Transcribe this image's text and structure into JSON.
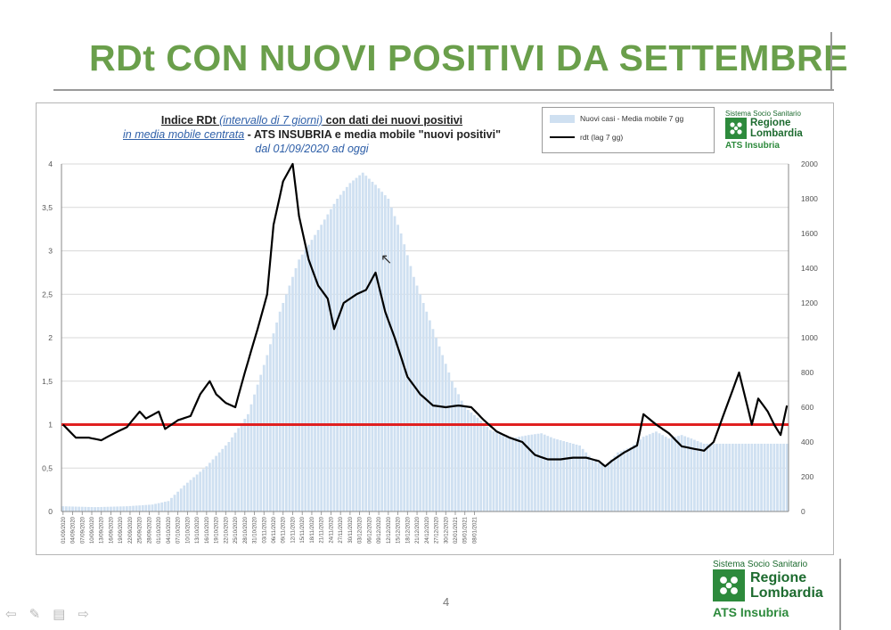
{
  "slide": {
    "title": "RDt CON NUOVI POSITIVI DA SETTEMBRE",
    "page_number": "4"
  },
  "logo": {
    "system": "Sistema Socio Sanitario",
    "region_line1": "Regione",
    "region_line2": "Lombardia",
    "ats": "ATS Insubria"
  },
  "colors": {
    "title_green": "#6a9f4b",
    "bars": "#cfe0f1",
    "line": "#000000",
    "threshold": "#e02020",
    "brand_green": "#2d8a3c"
  },
  "chart_data": {
    "type": "bar+line",
    "title_parts": {
      "p1": "Indice RDt ",
      "p2": "(intervallo di 7 giorni)",
      "p3": " con dati dei nuovi positivi",
      "p4": "in media mobile centrata",
      "p5": " - ATS INSUBRIA e media mobile \"nuovi positivi\"",
      "p6": "dal 01/09/2020 ad oggi"
    },
    "legend": {
      "bars": "Nuovi casi - Media mobile 7 gg",
      "line": "rdt (lag 7 gg)"
    },
    "y_left": {
      "min": 0,
      "max": 4,
      "ticks": [
        "0",
        "0,5",
        "1",
        "1,5",
        "2",
        "2,5",
        "3",
        "3,5",
        "4"
      ]
    },
    "y_right": {
      "min": 0,
      "max": 2000,
      "ticks": [
        "0",
        "200",
        "400",
        "600",
        "800",
        "1000",
        "1200",
        "1400",
        "1600",
        "1800",
        "2000"
      ]
    },
    "threshold": 1,
    "x_labels": [
      "01/09/2020",
      "04/09/2020",
      "07/09/2020",
      "10/09/2020",
      "13/09/2020",
      "16/09/2020",
      "19/09/2020",
      "22/09/2020",
      "25/09/2020",
      "28/09/2020",
      "01/10/2020",
      "04/10/2020",
      "07/10/2020",
      "10/10/2020",
      "13/10/2020",
      "16/10/2020",
      "19/10/2020",
      "22/10/2020",
      "25/10/2020",
      "28/10/2020",
      "31/10/2020",
      "03/11/2020",
      "06/11/2020",
      "09/11/2020",
      "12/11/2020",
      "15/11/2020",
      "18/11/2020",
      "21/11/2020",
      "24/11/2020",
      "27/11/2020",
      "30/11/2020",
      "03/12/2020",
      "06/12/2020",
      "09/12/2020",
      "12/12/2020",
      "15/12/2020",
      "18/12/2020",
      "21/12/2020",
      "24/12/2020",
      "27/12/2020",
      "30/12/2020",
      "02/01/2021",
      "05/01/2021",
      "08/01/2021"
    ],
    "bar_keypoints": [
      [
        0,
        30
      ],
      [
        10,
        25
      ],
      [
        20,
        30
      ],
      [
        28,
        40
      ],
      [
        33,
        60
      ],
      [
        38,
        150
      ],
      [
        45,
        260
      ],
      [
        52,
        400
      ],
      [
        58,
        560
      ],
      [
        64,
        900
      ],
      [
        68,
        1150
      ],
      [
        74,
        1450
      ],
      [
        80,
        1620
      ],
      [
        86,
        1800
      ],
      [
        90,
        1890
      ],
      [
        94,
        1950
      ],
      [
        98,
        1880
      ],
      [
        102,
        1800
      ],
      [
        106,
        1600
      ],
      [
        110,
        1350
      ],
      [
        114,
        1150
      ],
      [
        118,
        950
      ],
      [
        122,
        750
      ],
      [
        126,
        600
      ],
      [
        130,
        540
      ],
      [
        134,
        470
      ],
      [
        140,
        420
      ],
      [
        146,
        440
      ],
      [
        150,
        450
      ],
      [
        154,
        420
      ],
      [
        158,
        400
      ],
      [
        162,
        380
      ],
      [
        166,
        300
      ],
      [
        170,
        260
      ],
      [
        174,
        340
      ],
      [
        178,
        370
      ],
      [
        182,
        430
      ],
      [
        186,
        460
      ],
      [
        190,
        420
      ],
      [
        194,
        440
      ],
      [
        197,
        420
      ],
      [
        201,
        390
      ]
    ],
    "rdt_keypoints": [
      [
        0,
        1.0
      ],
      [
        4,
        0.85
      ],
      [
        8,
        0.85
      ],
      [
        12,
        0.82
      ],
      [
        16,
        0.9
      ],
      [
        20,
        0.97
      ],
      [
        24,
        1.15
      ],
      [
        26,
        1.07
      ],
      [
        30,
        1.15
      ],
      [
        32,
        0.95
      ],
      [
        36,
        1.05
      ],
      [
        40,
        1.1
      ],
      [
        43,
        1.35
      ],
      [
        46,
        1.5
      ],
      [
        48,
        1.35
      ],
      [
        51,
        1.25
      ],
      [
        54,
        1.2
      ],
      [
        57,
        1.6
      ],
      [
        61,
        2.1
      ],
      [
        64,
        2.5
      ],
      [
        66,
        3.3
      ],
      [
        69,
        3.8
      ],
      [
        72,
        4.0
      ],
      [
        74,
        3.4
      ],
      [
        77,
        2.9
      ],
      [
        80,
        2.6
      ],
      [
        83,
        2.45
      ],
      [
        85,
        2.1
      ],
      [
        88,
        2.4
      ],
      [
        92,
        2.5
      ],
      [
        95,
        2.55
      ],
      [
        98,
        2.75
      ],
      [
        101,
        2.3
      ],
      [
        104,
        2.0
      ],
      [
        108,
        1.55
      ],
      [
        112,
        1.35
      ],
      [
        116,
        1.22
      ],
      [
        120,
        1.2
      ],
      [
        124,
        1.22
      ],
      [
        128,
        1.2
      ],
      [
        132,
        1.05
      ],
      [
        136,
        0.92
      ],
      [
        140,
        0.85
      ],
      [
        144,
        0.8
      ],
      [
        148,
        0.65
      ],
      [
        152,
        0.6
      ],
      [
        156,
        0.6
      ],
      [
        160,
        0.62
      ],
      [
        164,
        0.62
      ],
      [
        168,
        0.58
      ],
      [
        170,
        0.52
      ],
      [
        172,
        0.58
      ],
      [
        176,
        0.68
      ],
      [
        180,
        0.76
      ],
      [
        182,
        1.12
      ],
      [
        186,
        1.0
      ],
      [
        190,
        0.9
      ],
      [
        194,
        0.75
      ],
      [
        198,
        0.72
      ],
      [
        201,
        0.7
      ],
      [
        204,
        0.8
      ],
      [
        207,
        1.1
      ],
      [
        210,
        1.4
      ],
      [
        212,
        1.6
      ],
      [
        214,
        1.3
      ],
      [
        216,
        1.0
      ],
      [
        218,
        1.3
      ],
      [
        221,
        1.15
      ],
      [
        223,
        1.0
      ],
      [
        225,
        0.88
      ],
      [
        227,
        1.22
      ]
    ]
  }
}
